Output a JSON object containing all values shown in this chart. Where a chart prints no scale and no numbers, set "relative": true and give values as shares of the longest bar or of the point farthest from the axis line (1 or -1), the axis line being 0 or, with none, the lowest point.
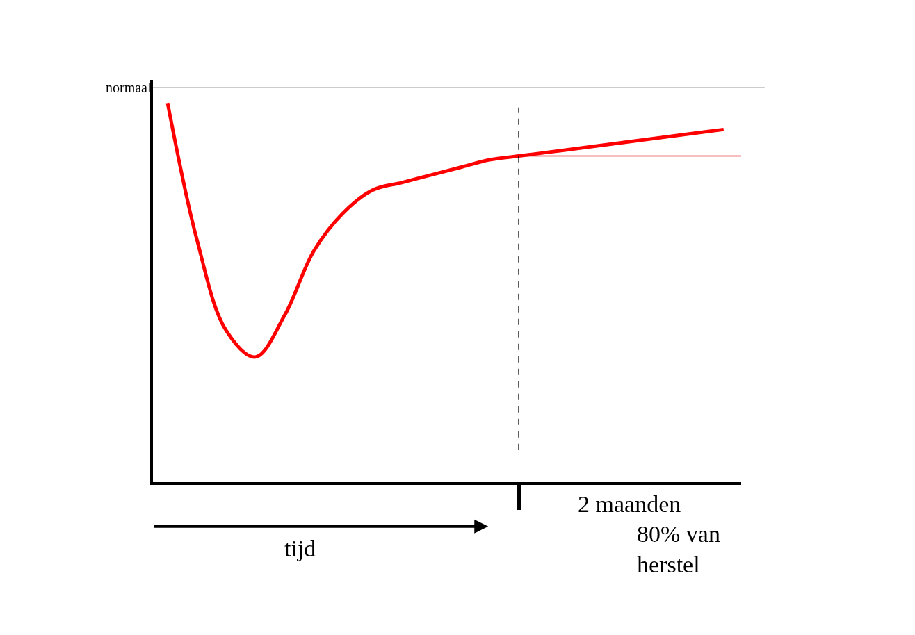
{
  "chart_data": {
    "type": "line",
    "relative": true,
    "categories": [
      null,
      null,
      null,
      null,
      null,
      null,
      null,
      null,
      null,
      null,
      null,
      null,
      null,
      null,
      null,
      null,
      null,
      null,
      null,
      null
    ],
    "series": [
      {
        "color": "#ff0000",
        "values": [
          1.0,
          0.64,
          0.4,
          0.33,
          0.44,
          0.61,
          0.71,
          0.77,
          0.79,
          0.81,
          0.83,
          0.85,
          0.86,
          0.87,
          0.88,
          0.89,
          0.9,
          0.91,
          0.92,
          0.93
        ]
      }
    ],
    "ref_lines": [
      {
        "axis": "y",
        "value": 1.04,
        "label": "normaal",
        "color": "#999999",
        "line_style": "solid"
      },
      {
        "axis": "y",
        "value": 0.86,
        "label": null,
        "color": "#e00000",
        "line_style": "solid"
      }
    ],
    "annotations": [
      "tijd",
      "80% van herstel",
      "2 maanden"
    ],
    "legend": false,
    "marker": "none",
    "line_style": "solid"
  }
}
